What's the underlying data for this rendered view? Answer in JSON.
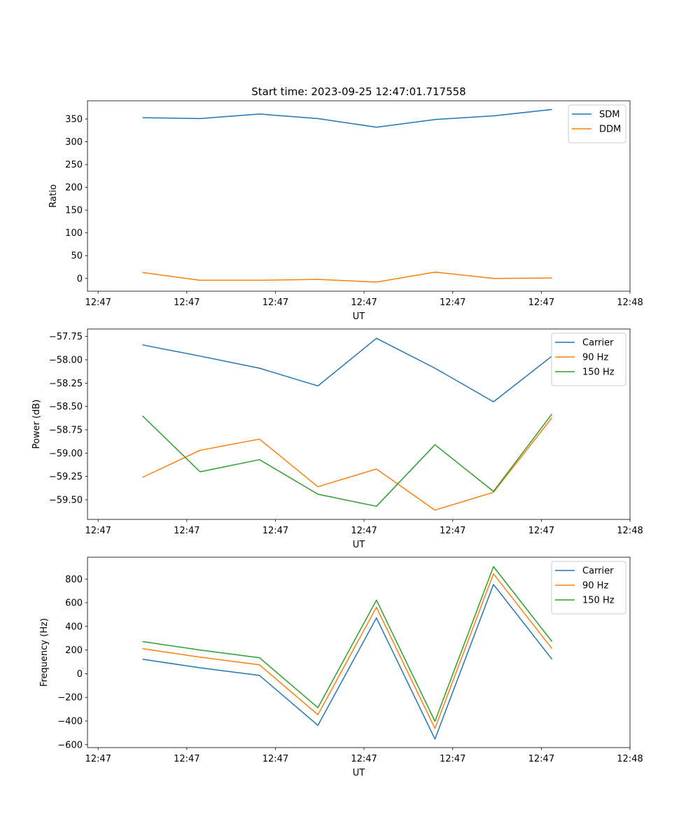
{
  "figure_title": "Start time: 2023-09-25 12:47:01.717558",
  "chart_data": [
    {
      "type": "line",
      "title": "Start time: 2023-09-25 12:47:01.717558",
      "xlabel": "UT",
      "ylabel": "Ratio",
      "x_ticks": [
        "12:47",
        "12:47",
        "12:47",
        "12:47",
        "12:47",
        "12:47",
        "12:48"
      ],
      "xlim": [
        -0.12,
        6.0
      ],
      "x": [
        0.5,
        1.15,
        1.82,
        2.48,
        3.14,
        3.8,
        4.46,
        5.12
      ],
      "ylim": [
        -28,
        390
      ],
      "y_ticks": [
        0,
        50,
        100,
        150,
        200,
        250,
        300,
        350
      ],
      "legend_position": "top-right",
      "series": [
        {
          "name": "SDM",
          "color": "#1f77b4",
          "values": [
            353,
            351,
            361,
            351,
            332,
            349,
            357,
            371
          ]
        },
        {
          "name": "DDM",
          "color": "#ff7f0e",
          "values": [
            13,
            -4,
            -4,
            -2,
            -8,
            14,
            0,
            1
          ]
        }
      ]
    },
    {
      "type": "line",
      "title": "",
      "xlabel": "UT",
      "ylabel": "Power (dB)",
      "x_ticks": [
        "12:47",
        "12:47",
        "12:47",
        "12:47",
        "12:47",
        "12:47",
        "12:48"
      ],
      "xlim": [
        -0.12,
        6.0
      ],
      "x": [
        0.5,
        1.15,
        1.82,
        2.48,
        3.14,
        3.8,
        4.46,
        5.12
      ],
      "ylim": [
        -59.71,
        -57.67
      ],
      "y_ticks": [
        -59.5,
        -59.25,
        -59.0,
        -58.75,
        -58.5,
        -58.25,
        -58.0,
        -57.75
      ],
      "y_tick_labels": [
        "−59.50",
        "−59.25",
        "−59.00",
        "−58.75",
        "−58.50",
        "−58.25",
        "−58.00",
        "−57.75"
      ],
      "legend_position": "top-right",
      "series": [
        {
          "name": "Carrier",
          "color": "#1f77b4",
          "values": [
            -57.84,
            -57.96,
            -58.09,
            -58.28,
            -57.77,
            -58.09,
            -58.45,
            -57.96
          ]
        },
        {
          "name": "90 Hz",
          "color": "#ff7f0e",
          "values": [
            -59.26,
            -58.97,
            -58.85,
            -59.36,
            -59.17,
            -59.61,
            -59.42,
            -58.62
          ]
        },
        {
          "name": "150 Hz",
          "color": "#2ca02c",
          "values": [
            -58.6,
            -59.2,
            -59.07,
            -59.44,
            -59.57,
            -58.91,
            -59.41,
            -58.58
          ]
        }
      ]
    },
    {
      "type": "line",
      "title": "",
      "xlabel": "UT",
      "ylabel": "Frequency (Hz)",
      "x_ticks": [
        "12:47",
        "12:47",
        "12:47",
        "12:47",
        "12:47",
        "12:47",
        "12:48"
      ],
      "xlim": [
        -0.12,
        6.0
      ],
      "x": [
        0.5,
        1.15,
        1.82,
        2.48,
        3.14,
        3.8,
        4.46,
        5.12
      ],
      "ylim": [
        -625,
        985
      ],
      "y_ticks": [
        -600,
        -400,
        -200,
        0,
        200,
        400,
        600,
        800
      ],
      "y_tick_labels": [
        "−600",
        "−400",
        "−200",
        "0",
        "200",
        "400",
        "600",
        "800"
      ],
      "legend_position": "top-right",
      "series": [
        {
          "name": "Carrier",
          "color": "#1f77b4",
          "values": [
            122,
            50,
            -15,
            -437,
            472,
            -553,
            755,
            122
          ]
        },
        {
          "name": "90 Hz",
          "color": "#ff7f0e",
          "values": [
            212,
            140,
            75,
            -347,
            562,
            -463,
            845,
            212
          ]
        },
        {
          "name": "150 Hz",
          "color": "#2ca02c",
          "values": [
            272,
            200,
            135,
            -287,
            622,
            -403,
            905,
            272
          ]
        }
      ]
    }
  ]
}
